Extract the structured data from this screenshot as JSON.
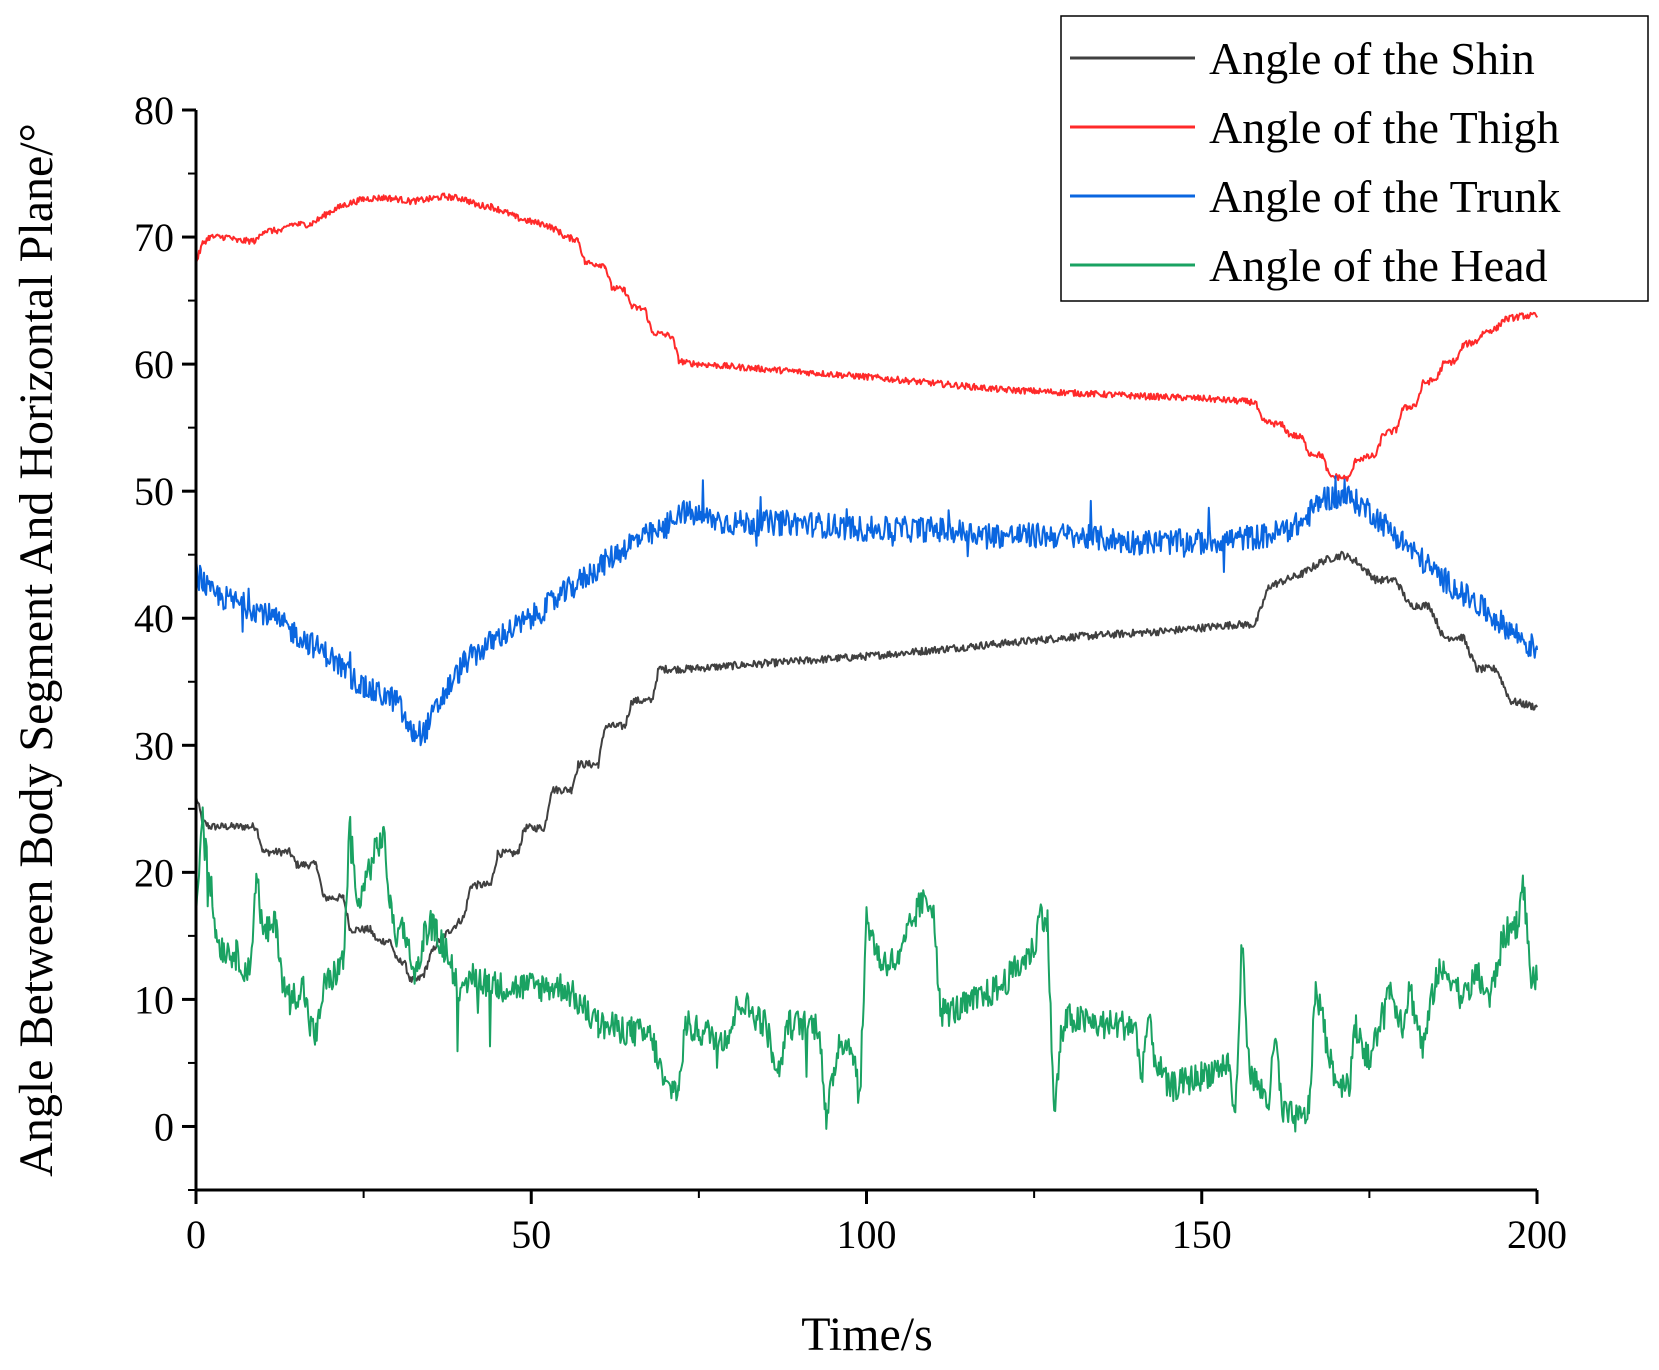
{
  "chart_data": {
    "type": "line",
    "title": "",
    "xlabel": "Time/s",
    "ylabel": "Angle Between Body Segment And Horizontal Plane/°",
    "xlim": [
      0,
      200
    ],
    "ylim": [
      -5,
      80
    ],
    "xticks": [
      0,
      50,
      100,
      150,
      200
    ],
    "yticks": [
      0,
      10,
      20,
      30,
      40,
      50,
      60,
      70,
      80
    ],
    "legend_position": "top-right",
    "series": [
      {
        "name": "Angle of the Shin",
        "color": "#404040",
        "noise": 0.3,
        "x": [
          0,
          1,
          2,
          9,
          10,
          14,
          15,
          18,
          19,
          22,
          23,
          26,
          27,
          29,
          30,
          31,
          32,
          33,
          34,
          35,
          36,
          37,
          38,
          40,
          41,
          44,
          45,
          48,
          49,
          52,
          53,
          56,
          57,
          60,
          61,
          64,
          65,
          68,
          69,
          72,
          73,
          100,
          130,
          145,
          155,
          158,
          160,
          165,
          168,
          171,
          173,
          175,
          176,
          179,
          181,
          184,
          186,
          189,
          191,
          194,
          196,
          200
        ],
        "y": [
          26,
          24,
          23.6,
          23.6,
          21.6,
          21.6,
          20.6,
          20.6,
          18,
          18,
          15.5,
          15.5,
          14.6,
          14.6,
          13,
          13,
          11.5,
          11.5,
          12,
          13.5,
          14.5,
          15,
          15.5,
          16.5,
          19,
          19,
          21.5,
          21.5,
          23.5,
          23.5,
          26.5,
          26.5,
          28.5,
          28.5,
          31.5,
          31.5,
          33.5,
          33.5,
          36,
          36,
          36,
          37,
          38.5,
          39,
          39.5,
          39.5,
          42.5,
          43.5,
          44.5,
          45,
          44.5,
          43.5,
          43,
          43,
          41,
          41,
          38.5,
          38.5,
          36,
          36,
          33.5,
          33
        ]
      },
      {
        "name": "Angle of the Thigh",
        "color": "#ff2a2a",
        "noise": 0.25,
        "x": [
          0,
          1,
          2,
          5,
          6,
          9,
          10,
          13,
          14,
          17,
          18,
          20,
          22,
          25,
          28,
          30,
          32,
          35,
          37,
          40,
          42,
          44,
          46,
          48,
          50,
          52,
          54,
          55,
          57,
          58,
          61,
          62,
          64,
          65,
          67,
          68,
          70,
          71,
          72,
          73,
          80,
          100,
          120,
          140,
          150,
          158,
          159,
          162,
          163,
          165,
          166,
          168,
          169,
          172,
          173,
          176,
          177,
          179,
          180,
          182,
          183,
          185,
          186,
          188,
          189,
          191,
          192,
          194,
          195,
          197,
          198,
          200
        ],
        "y": [
          68,
          69.5,
          70,
          70,
          69.7,
          69.7,
          70.5,
          70.5,
          71,
          71,
          71.3,
          72,
          72.5,
          73,
          73.1,
          73,
          72.8,
          73,
          73.2,
          73,
          72.5,
          72.4,
          72,
          71.5,
          71.2,
          71,
          70.5,
          70,
          69.8,
          68,
          67.8,
          66,
          65.8,
          64.5,
          64.3,
          62.5,
          62.3,
          62.2,
          60.3,
          60.1,
          59.8,
          59,
          58,
          57.5,
          57.3,
          57,
          55.5,
          55.2,
          54.5,
          54.2,
          53,
          52.8,
          51.2,
          51,
          52.5,
          52.8,
          54.5,
          54.8,
          56.5,
          56.8,
          58.5,
          58.8,
          60,
          60.3,
          61.5,
          61.8,
          62.5,
          62.8,
          63.5,
          63.7,
          63.8,
          63.8
        ]
      },
      {
        "name": "Angle of the Trunk",
        "color": "#0a66e0",
        "noise": 1.0,
        "x": [
          0,
          2,
          10,
          20,
          25,
          30,
          32,
          34,
          37,
          40,
          45,
          50,
          55,
          60,
          65,
          70,
          72,
          75,
          80,
          90,
          100,
          110,
          120,
          130,
          140,
          150,
          160,
          165,
          168,
          172,
          175,
          180,
          185,
          190,
          195,
          200
        ],
        "y": [
          44,
          42,
          40.5,
          37,
          34.5,
          33.5,
          31,
          31,
          34,
          36.5,
          38.5,
          40,
          42,
          44,
          46,
          47,
          48.5,
          48,
          47.5,
          47.5,
          47,
          47,
          46.5,
          46.5,
          46,
          46,
          46.5,
          47.5,
          49.5,
          49.5,
          48.5,
          46,
          43.5,
          41.5,
          39.5,
          37.5
        ]
      },
      {
        "name": "Angle of the Head",
        "color": "#1aa262",
        "noise": 1.2,
        "x": [
          0,
          1,
          2,
          3,
          4,
          6,
          8,
          9,
          10,
          12,
          13,
          14,
          16,
          17,
          18,
          19,
          20,
          22,
          23,
          24,
          25,
          27,
          28,
          29,
          30,
          31,
          32,
          33,
          34,
          35,
          36,
          37,
          38,
          39,
          40,
          41,
          45,
          50,
          55,
          60,
          65,
          68,
          70,
          72,
          73,
          75,
          79,
          80,
          81,
          83,
          85,
          86,
          87,
          88,
          89,
          90,
          93,
          94,
          95,
          96,
          98,
          99,
          100,
          102,
          105,
          106,
          108,
          110,
          111,
          112,
          115,
          120,
          125,
          126,
          127,
          128,
          129,
          130,
          135,
          140,
          141,
          142,
          143,
          145,
          150,
          154,
          155,
          156,
          157,
          158,
          160,
          161,
          162,
          165,
          166,
          167,
          170,
          172,
          173,
          175,
          176,
          178,
          180,
          181,
          183,
          185,
          187,
          189,
          191,
          193,
          195,
          197,
          198,
          199,
          200
        ],
        "y": [
          17,
          25,
          20,
          15,
          14,
          13.5,
          12,
          20,
          15,
          16,
          11,
          10,
          11,
          8,
          7,
          11,
          11.5,
          13,
          24,
          17,
          19,
          22,
          23,
          17,
          15,
          16,
          13,
          12,
          15,
          16,
          15,
          14,
          13,
          11,
          10,
          12,
          11,
          11,
          11,
          8,
          7.5,
          7,
          3,
          3,
          8,
          7.5,
          7,
          8,
          10,
          9,
          8,
          6,
          4,
          8,
          8,
          8,
          8,
          0,
          4,
          7,
          6,
          2,
          16.5,
          13,
          13,
          15,
          17.5,
          17.5,
          9,
          9,
          9.5,
          11,
          14,
          17,
          16,
          0.5,
          7,
          8.5,
          8,
          8,
          4,
          8.5,
          5.5,
          3,
          4,
          5,
          0.5,
          14.5,
          5,
          3.5,
          2,
          7,
          1,
          0.5,
          1.5,
          11,
          3.5,
          3.5,
          8,
          5,
          7,
          11,
          8,
          11,
          6,
          12,
          12,
          10,
          12,
          10,
          15,
          16,
          19,
          12,
          11.5
        ]
      }
    ]
  }
}
